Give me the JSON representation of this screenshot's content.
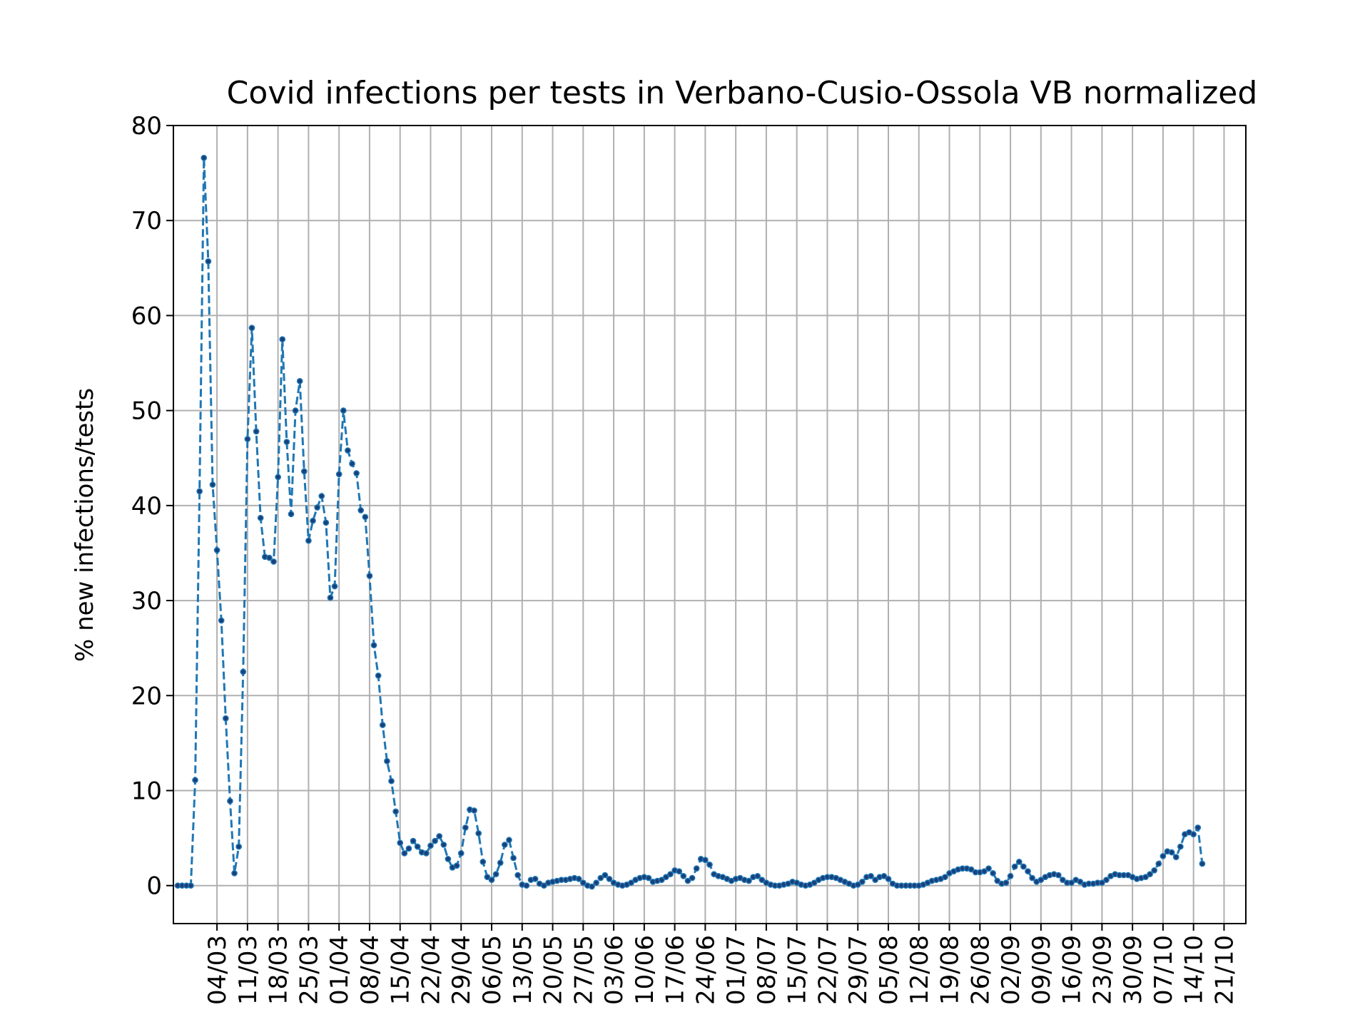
{
  "chart_data": {
    "type": "line",
    "title": "Covid infections per tests in Verbano-Cusio-Ossola VB normalized",
    "xlabel": "",
    "ylabel": "% new infections/tests",
    "ylim": [
      -4,
      80
    ],
    "yticks": [
      0,
      10,
      20,
      30,
      40,
      50,
      60,
      70,
      80
    ],
    "xlim": [
      "2020-02-23",
      "2020-10-26"
    ],
    "grid": true,
    "line_style": "dashed",
    "marker": "dot",
    "colors": {
      "line": "#1f77b4",
      "marker": "#1a3f7a",
      "grid": "#b0b0b0"
    },
    "xticks": [
      {
        "date": "2020-03-04",
        "label": "04/03"
      },
      {
        "date": "2020-03-11",
        "label": "11/03"
      },
      {
        "date": "2020-03-18",
        "label": "18/03"
      },
      {
        "date": "2020-03-25",
        "label": "25/03"
      },
      {
        "date": "2020-04-01",
        "label": "01/04"
      },
      {
        "date": "2020-04-08",
        "label": "08/04"
      },
      {
        "date": "2020-04-15",
        "label": "15/04"
      },
      {
        "date": "2020-04-22",
        "label": "22/04"
      },
      {
        "date": "2020-04-29",
        "label": "29/04"
      },
      {
        "date": "2020-05-06",
        "label": "06/05"
      },
      {
        "date": "2020-05-13",
        "label": "13/05"
      },
      {
        "date": "2020-05-20",
        "label": "20/05"
      },
      {
        "date": "2020-05-27",
        "label": "27/05"
      },
      {
        "date": "2020-06-03",
        "label": "03/06"
      },
      {
        "date": "2020-06-10",
        "label": "10/06"
      },
      {
        "date": "2020-06-17",
        "label": "17/06"
      },
      {
        "date": "2020-06-24",
        "label": "24/06"
      },
      {
        "date": "2020-07-01",
        "label": "01/07"
      },
      {
        "date": "2020-07-08",
        "label": "08/07"
      },
      {
        "date": "2020-07-15",
        "label": "15/07"
      },
      {
        "date": "2020-07-22",
        "label": "22/07"
      },
      {
        "date": "2020-07-29",
        "label": "29/07"
      },
      {
        "date": "2020-08-05",
        "label": "05/08"
      },
      {
        "date": "2020-08-12",
        "label": "12/08"
      },
      {
        "date": "2020-08-19",
        "label": "19/08"
      },
      {
        "date": "2020-08-26",
        "label": "26/08"
      },
      {
        "date": "2020-09-02",
        "label": "02/09"
      },
      {
        "date": "2020-09-09",
        "label": "09/09"
      },
      {
        "date": "2020-09-16",
        "label": "16/09"
      },
      {
        "date": "2020-09-23",
        "label": "23/09"
      },
      {
        "date": "2020-09-30",
        "label": "30/09"
      },
      {
        "date": "2020-10-07",
        "label": "07/10"
      },
      {
        "date": "2020-10-14",
        "label": "14/10"
      },
      {
        "date": "2020-10-21",
        "label": "21/10"
      }
    ],
    "series": [
      {
        "start_date": "2020-02-24",
        "step_days": 1,
        "values": [
          0,
          0,
          0,
          0,
          11.1,
          41.5,
          76.6,
          65.7,
          42.2,
          35.3,
          27.9,
          17.6,
          8.9,
          1.3,
          4.1,
          22.5,
          47.0,
          58.7,
          47.8,
          38.7,
          34.6,
          34.5,
          34.1,
          43.0,
          57.5,
          46.7,
          39.1,
          50.0,
          53.1,
          43.6,
          36.3,
          38.4,
          39.8,
          41.0,
          38.2,
          30.3,
          31.5,
          43.3,
          50.0,
          45.8,
          44.4,
          43.4,
          39.5,
          38.8,
          32.6,
          25.3,
          22.1,
          16.9,
          13.1,
          11.0,
          7.8,
          4.5,
          3.4,
          3.9,
          4.7,
          4.1,
          3.5,
          3.4,
          4.2,
          4.7,
          5.2,
          4.3,
          2.8,
          1.9,
          2.1,
          3.4,
          6.1,
          8.0,
          7.9,
          5.5,
          2.5,
          0.9,
          0.6,
          1.2,
          2.4,
          4.3,
          4.8,
          2.9,
          1.1,
          0.1,
          0.0,
          0.6,
          0.7,
          0.2,
          0.0,
          0.3,
          0.4,
          0.5,
          0.6,
          0.6,
          0.7,
          0.8,
          0.7,
          0.3,
          0.0,
          -0.1,
          0.3,
          0.8,
          1.1,
          0.7,
          0.3,
          0.1,
          0.0,
          0.1,
          0.3,
          0.6,
          0.8,
          0.9,
          0.8,
          0.4,
          0.5,
          0.6,
          0.9,
          1.2,
          1.6,
          1.5,
          1.0,
          0.5,
          0.8,
          1.8,
          2.8,
          2.7,
          2.2,
          1.2,
          1.0,
          0.9,
          0.7,
          0.5,
          0.7,
          0.8,
          0.6,
          0.5,
          0.9,
          1.0,
          0.6,
          0.3,
          0.1,
          0.0,
          0.0,
          0.1,
          0.2,
          0.4,
          0.3,
          0.1,
          0.0,
          0.1,
          0.3,
          0.6,
          0.8,
          0.9,
          0.9,
          0.8,
          0.6,
          0.4,
          0.2,
          0.0,
          0.1,
          0.4,
          0.9,
          1.0,
          0.6,
          0.9,
          1.0,
          0.7,
          0.2,
          0.0,
          0.0,
          0.0,
          0.0,
          0.0,
          0.0,
          0.1,
          0.3,
          0.5,
          0.6,
          0.7,
          0.9,
          1.3,
          1.5,
          1.7,
          1.8,
          1.8,
          1.7,
          1.4,
          1.4,
          1.5,
          1.8,
          1.3,
          0.5,
          0.2,
          0.3,
          1.0,
          2.0,
          2.5,
          2.0,
          1.5,
          0.8,
          0.4,
          0.6,
          0.9,
          1.1,
          1.2,
          1.1,
          0.6,
          0.3,
          0.3,
          0.6,
          0.4,
          0.1,
          0.2,
          0.2,
          0.3,
          0.3,
          0.6,
          1.0,
          1.2,
          1.1,
          1.1,
          1.1,
          0.9,
          0.7,
          0.8,
          0.9,
          1.2,
          1.6,
          2.3,
          3.1,
          3.6,
          3.5,
          3.0,
          4.1,
          5.4,
          5.6,
          5.4,
          6.1,
          2.3
        ]
      }
    ]
  }
}
